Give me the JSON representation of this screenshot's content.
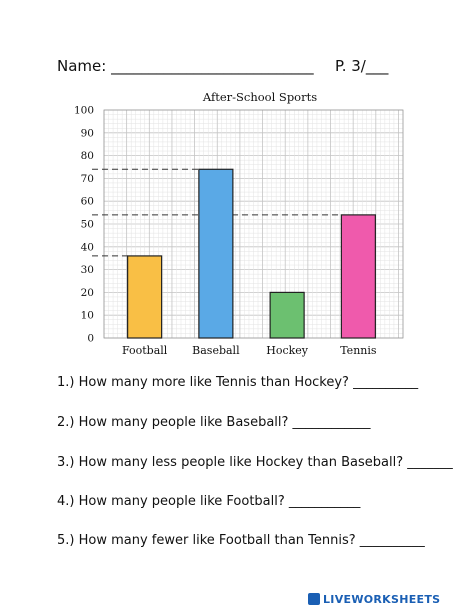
{
  "header": {
    "name_label": "Name: ___________________________",
    "page_label": "P. 3/___"
  },
  "chart_data": {
    "type": "bar",
    "title": "After-School Sports",
    "categories": [
      "Football",
      "Baseball",
      "Hockey",
      "Tennis"
    ],
    "values": [
      36,
      74,
      20,
      54
    ],
    "colors": [
      "#f9bf45",
      "#5aa9e6",
      "#6cc070",
      "#ef5aac"
    ],
    "ylim": [
      0,
      100
    ],
    "yticks": [
      0,
      10,
      20,
      30,
      40,
      50,
      60,
      70,
      80,
      90,
      100
    ],
    "xlabel": "",
    "ylabel": "",
    "grid": true,
    "reference_lines": [
      36,
      54,
      74
    ]
  },
  "questions": [
    "1.) How many more like Tennis than Hockey? __________",
    "2.) How many people like Baseball? ____________",
    "3.) How many less people like Hockey than Baseball? _______",
    "4.) How many people like Football? ___________",
    "5.) How many fewer like Football than Tennis? __________"
  ],
  "footer": {
    "brand": "LIVEWORKSHEETS"
  }
}
